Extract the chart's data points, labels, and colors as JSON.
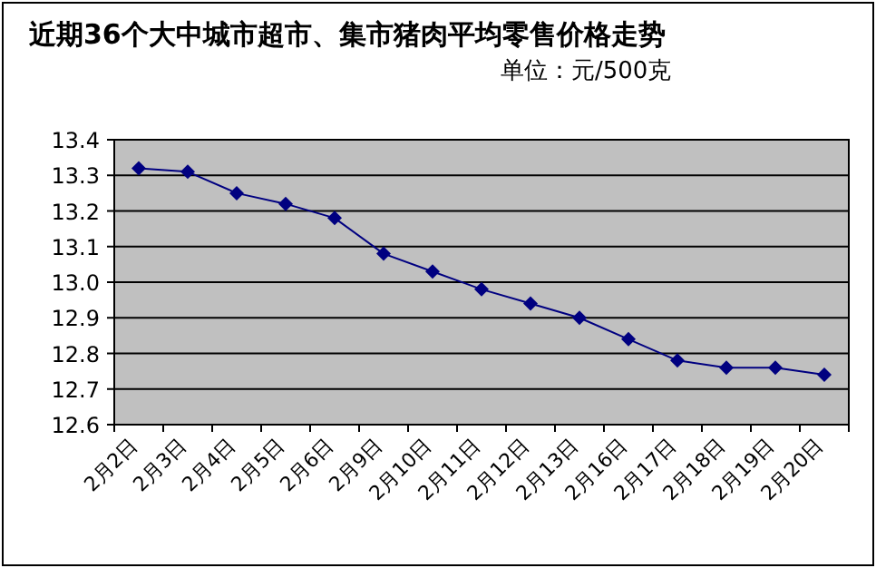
{
  "chart_data": {
    "type": "line",
    "title": "近期36个大中城市超市、集市猪肉平均零售价格走势",
    "subtitle": "单位：元/500克",
    "categories": [
      "2月2日",
      "2月3日",
      "2月4日",
      "2月5日",
      "2月6日",
      "2月9日",
      "2月10日",
      "2月11日",
      "2月12日",
      "2月13日",
      "2月16日",
      "2月17日",
      "2月18日",
      "2月19日",
      "2月20日"
    ],
    "series": [
      {
        "color": "#000080",
        "values": [
          13.32,
          13.31,
          13.25,
          13.22,
          13.18,
          13.08,
          13.03,
          12.98,
          12.94,
          12.9,
          12.84,
          12.78,
          12.76,
          12.76,
          12.74
        ]
      }
    ],
    "ylim": [
      12.6,
      13.4
    ],
    "yticks": [
      {
        "value": 12.6,
        "label": "12.6"
      },
      {
        "value": 12.7,
        "label": "12.7"
      },
      {
        "value": 12.8,
        "label": "12.8"
      },
      {
        "value": 12.9,
        "label": "12.9"
      },
      {
        "value": 13.0,
        "label": "13.0"
      },
      {
        "value": 13.1,
        "label": "13.1"
      },
      {
        "value": 13.2,
        "label": "13.2"
      },
      {
        "value": 13.3,
        "label": "13.3"
      },
      {
        "value": 13.4,
        "label": "13.4"
      }
    ],
    "grid": "y",
    "marker": "diamond"
  }
}
